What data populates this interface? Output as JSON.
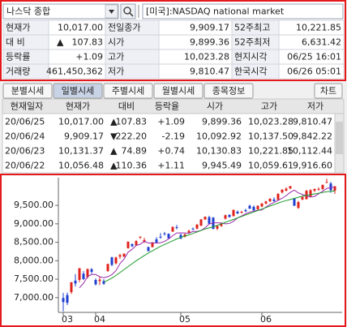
{
  "search": {
    "name": "나스닥 종합",
    "market": "[미국]:NASDAQ national market"
  },
  "quote": {
    "rows": [
      [
        "현재가",
        "10,017.00",
        "전일종가",
        "9,909.17",
        "52주최고",
        "10,221.85"
      ],
      [
        "대 비",
        "107.83",
        "시가",
        "9,899.36",
        "52주최저",
        "6,631.42"
      ],
      [
        "등락률",
        "+1.09",
        "고가",
        "10,023.28",
        "현지시각",
        "06/25 16:01"
      ],
      [
        "거래량",
        "461,450,362",
        "저가",
        "9,810.47",
        "한국시각",
        "06/26 05:01"
      ]
    ],
    "arrow": "▲"
  },
  "tabs": [
    "분별시세",
    "일별시세",
    "주별시세",
    "월별시세",
    "종목정보"
  ],
  "chart_button": "차트",
  "daily": {
    "columns": [
      "현재일자",
      "현재가",
      "대비",
      "등락율",
      "시가",
      "고가",
      "저가"
    ],
    "rows": [
      [
        "20/06/25",
        "10,017.00",
        "▲",
        "107.83",
        "+1.09",
        "9,899.36",
        "10,023.28",
        "9,810.47"
      ],
      [
        "20/06/24",
        "9,909.17",
        "▼",
        "222.20",
        "-2.19",
        "10,092.92",
        "10,137.50",
        "9,842.22"
      ],
      [
        "20/06/23",
        "10,131.37",
        "▲",
        "74.89",
        "+0.74",
        "10,130.83",
        "10,221.85",
        "10,112.44"
      ],
      [
        "20/06/22",
        "10,056.48",
        "▲",
        "110.36",
        "+1.11",
        "9,945.49",
        "10,059.61",
        "9,916.60"
      ]
    ],
    "colors": [
      "#e0211b",
      "#1f3fd1",
      "#e0211b",
      "#e0211b"
    ]
  },
  "chart_data": {
    "type": "candlestick",
    "categories": [
      "03",
      null,
      null,
      null,
      null,
      null,
      null,
      null,
      "04",
      null,
      null,
      null,
      null,
      null,
      null,
      null,
      null,
      null,
      null,
      null,
      null,
      null,
      null,
      null,
      null,
      null,
      null,
      null,
      null,
      "05",
      null,
      null,
      null,
      null,
      null,
      null,
      null,
      null,
      null,
      null,
      null,
      null,
      null,
      null,
      null,
      null,
      null,
      null,
      null,
      "06",
      null,
      null,
      null,
      null,
      null,
      null,
      null,
      null,
      null,
      null,
      null,
      null,
      null,
      null,
      null,
      null,
      null,
      null
    ],
    "open": [
      6990,
      7070,
      7150,
      7460,
      7480,
      7650,
      7560,
      7770,
      7480,
      7450,
      7450,
      7720,
      8090,
      7930,
      8110,
      8110,
      8340,
      8450,
      8420,
      8640,
      8520,
      8370,
      8370,
      8580,
      8650,
      8740,
      8730,
      8790,
      8910,
      8700,
      8650,
      8760,
      8870,
      8870,
      8950,
      9120,
      9180,
      9170,
      8870,
      8940,
      9140,
      9240,
      9210,
      9330,
      9300,
      9370,
      9490,
      9460,
      9390,
      9470,
      9550,
      9610,
      9660,
      9650,
      9850,
      9900,
      9960,
      9690,
      9430,
      9660,
      9670,
      9740,
      9900,
      9930,
      9945.49,
      10130.83,
      10092.92,
      9899.36
    ],
    "high": [
      7130,
      7140,
      7420,
      7640,
      7800,
      7720,
      7790,
      7800,
      7520,
      7560,
      7500,
      7920,
      8110,
      8110,
      8190,
      8200,
      8520,
      8470,
      8560,
      8660,
      8620,
      8380,
      8510,
      8640,
      8750,
      8780,
      8740,
      8930,
      8970,
      8730,
      8740,
      8840,
      8900,
      8990,
      9130,
      9200,
      9220,
      9180,
      8960,
      9030,
      9250,
      9260,
      9390,
      9360,
      9350,
      9410,
      9520,
      9500,
      9500,
      9560,
      9620,
      9690,
      9720,
      9830,
      9940,
      9990,
      10030,
      9700,
      9620,
      9760,
      9920,
      9940,
      9960,
      9990,
      10059.61,
      10221.85,
      10137.5,
      10023.28
    ],
    "low": [
      6630,
      6800,
      7100,
      7300,
      7420,
      7480,
      7520,
      7650,
      7330,
      7340,
      7350,
      7700,
      7850,
      7900,
      8050,
      8100,
      8330,
      8370,
      8400,
      8590,
      8480,
      8250,
      8360,
      8470,
      8600,
      8680,
      8600,
      8780,
      8850,
      8580,
      8630,
      8740,
      8830,
      8850,
      8940,
      9100,
      8990,
      8850,
      8830,
      8920,
      9120,
      9170,
      9200,
      9260,
      9280,
      9320,
      9400,
      9340,
      9380,
      9450,
      9530,
      9590,
      9600,
      9640,
      9820,
      9880,
      9940,
      9480,
      9410,
      9640,
      9660,
      9730,
      9860,
      9900,
      9916.6,
      10112.44,
      9842.22,
      9810.47
    ],
    "close": [
      6880,
      6860,
      7417,
      7384,
      7797,
      7502,
      7774,
      7700,
      7360,
      7487,
      7373,
      7913,
      7887,
      8090,
      8153,
      8192,
      8516,
      8393,
      8532,
      8650,
      8561,
      8263,
      8495,
      8494,
      8634,
      8730,
      8607,
      8914,
      8889,
      8605,
      8710,
      8809,
      8854,
      8980,
      9121,
      9192,
      9002,
      8863,
      8943,
      9014,
      9234,
      9185,
      9375,
      9284,
      9324,
      9340,
      9412,
      9368,
      9490,
      9552,
      9608,
      9683,
      9616,
      9814,
      9924,
      9953,
      10020,
      9492,
      9589,
      9726,
      9895,
      9910,
      9943,
      9946,
      10056.48,
      10131.37,
      9909.17,
      10017
    ],
    "up_color": "#e0211b",
    "down_color": "#1f3fd1",
    "series": [
      {
        "color": "#9a2aa8",
        "values": [
          null,
          null,
          null,
          null,
          7268,
          7392,
          7571,
          7630,
          7627,
          7565,
          7539,
          7567,
          7624,
          7730,
          7921,
          8047,
          8230,
          8311,
          8417,
          8447,
          8530,
          8480,
          8480,
          8479,
          8489,
          8523,
          8591,
          8678,
          8753,
          8755,
          8751,
          8745,
          8796,
          8792,
          8820,
          8893,
          8994,
          9028,
          9026,
          9024,
          8999,
          9009,
          9070,
          9160,
          9212,
          9274,
          9317,
          9345,
          9364,
          9376,
          9455,
          9525,
          9580,
          9632,
          9695,
          9763,
          9853,
          9914,
          9838,
          9796,
          9756,
          9724,
          9745,
          9812,
          9884,
          9959,
          9984,
          10000
        ]
      },
      {
        "color": "#1a9a2a",
        "values": [
          null,
          null,
          null,
          null,
          null,
          null,
          null,
          null,
          null,
          null,
          7420,
          7470,
          7530,
          7600,
          7680,
          7760,
          7840,
          7920,
          8000,
          8070,
          8140,
          8210,
          8270,
          8330,
          8390,
          8440,
          8490,
          8540,
          8590,
          8630,
          8670,
          8700,
          8740,
          8780,
          8820,
          8860,
          8890,
          8920,
          8960,
          9000,
          9040,
          9080,
          9120,
          9160,
          9200,
          9240,
          9280,
          9320,
          9360,
          9400,
          9440,
          9480,
          9520,
          9560,
          9600,
          9630,
          9660,
          9690,
          9720,
          9750,
          9770,
          9790,
          9810,
          9830,
          9850,
          9870,
          9880,
          9890
        ]
      }
    ],
    "ylim": [
      6600,
      10250
    ],
    "yticks": [
      {
        "value": 7000,
        "label": "7,000.00"
      },
      {
        "value": 7500,
        "label": "7,500.00"
      },
      {
        "value": 8000,
        "label": "8,000.00"
      },
      {
        "value": 8500,
        "label": "8,500.00"
      },
      {
        "value": 9000,
        "label": "9,000.00"
      },
      {
        "value": 9500,
        "label": "9,500.00"
      }
    ],
    "grid": false
  }
}
